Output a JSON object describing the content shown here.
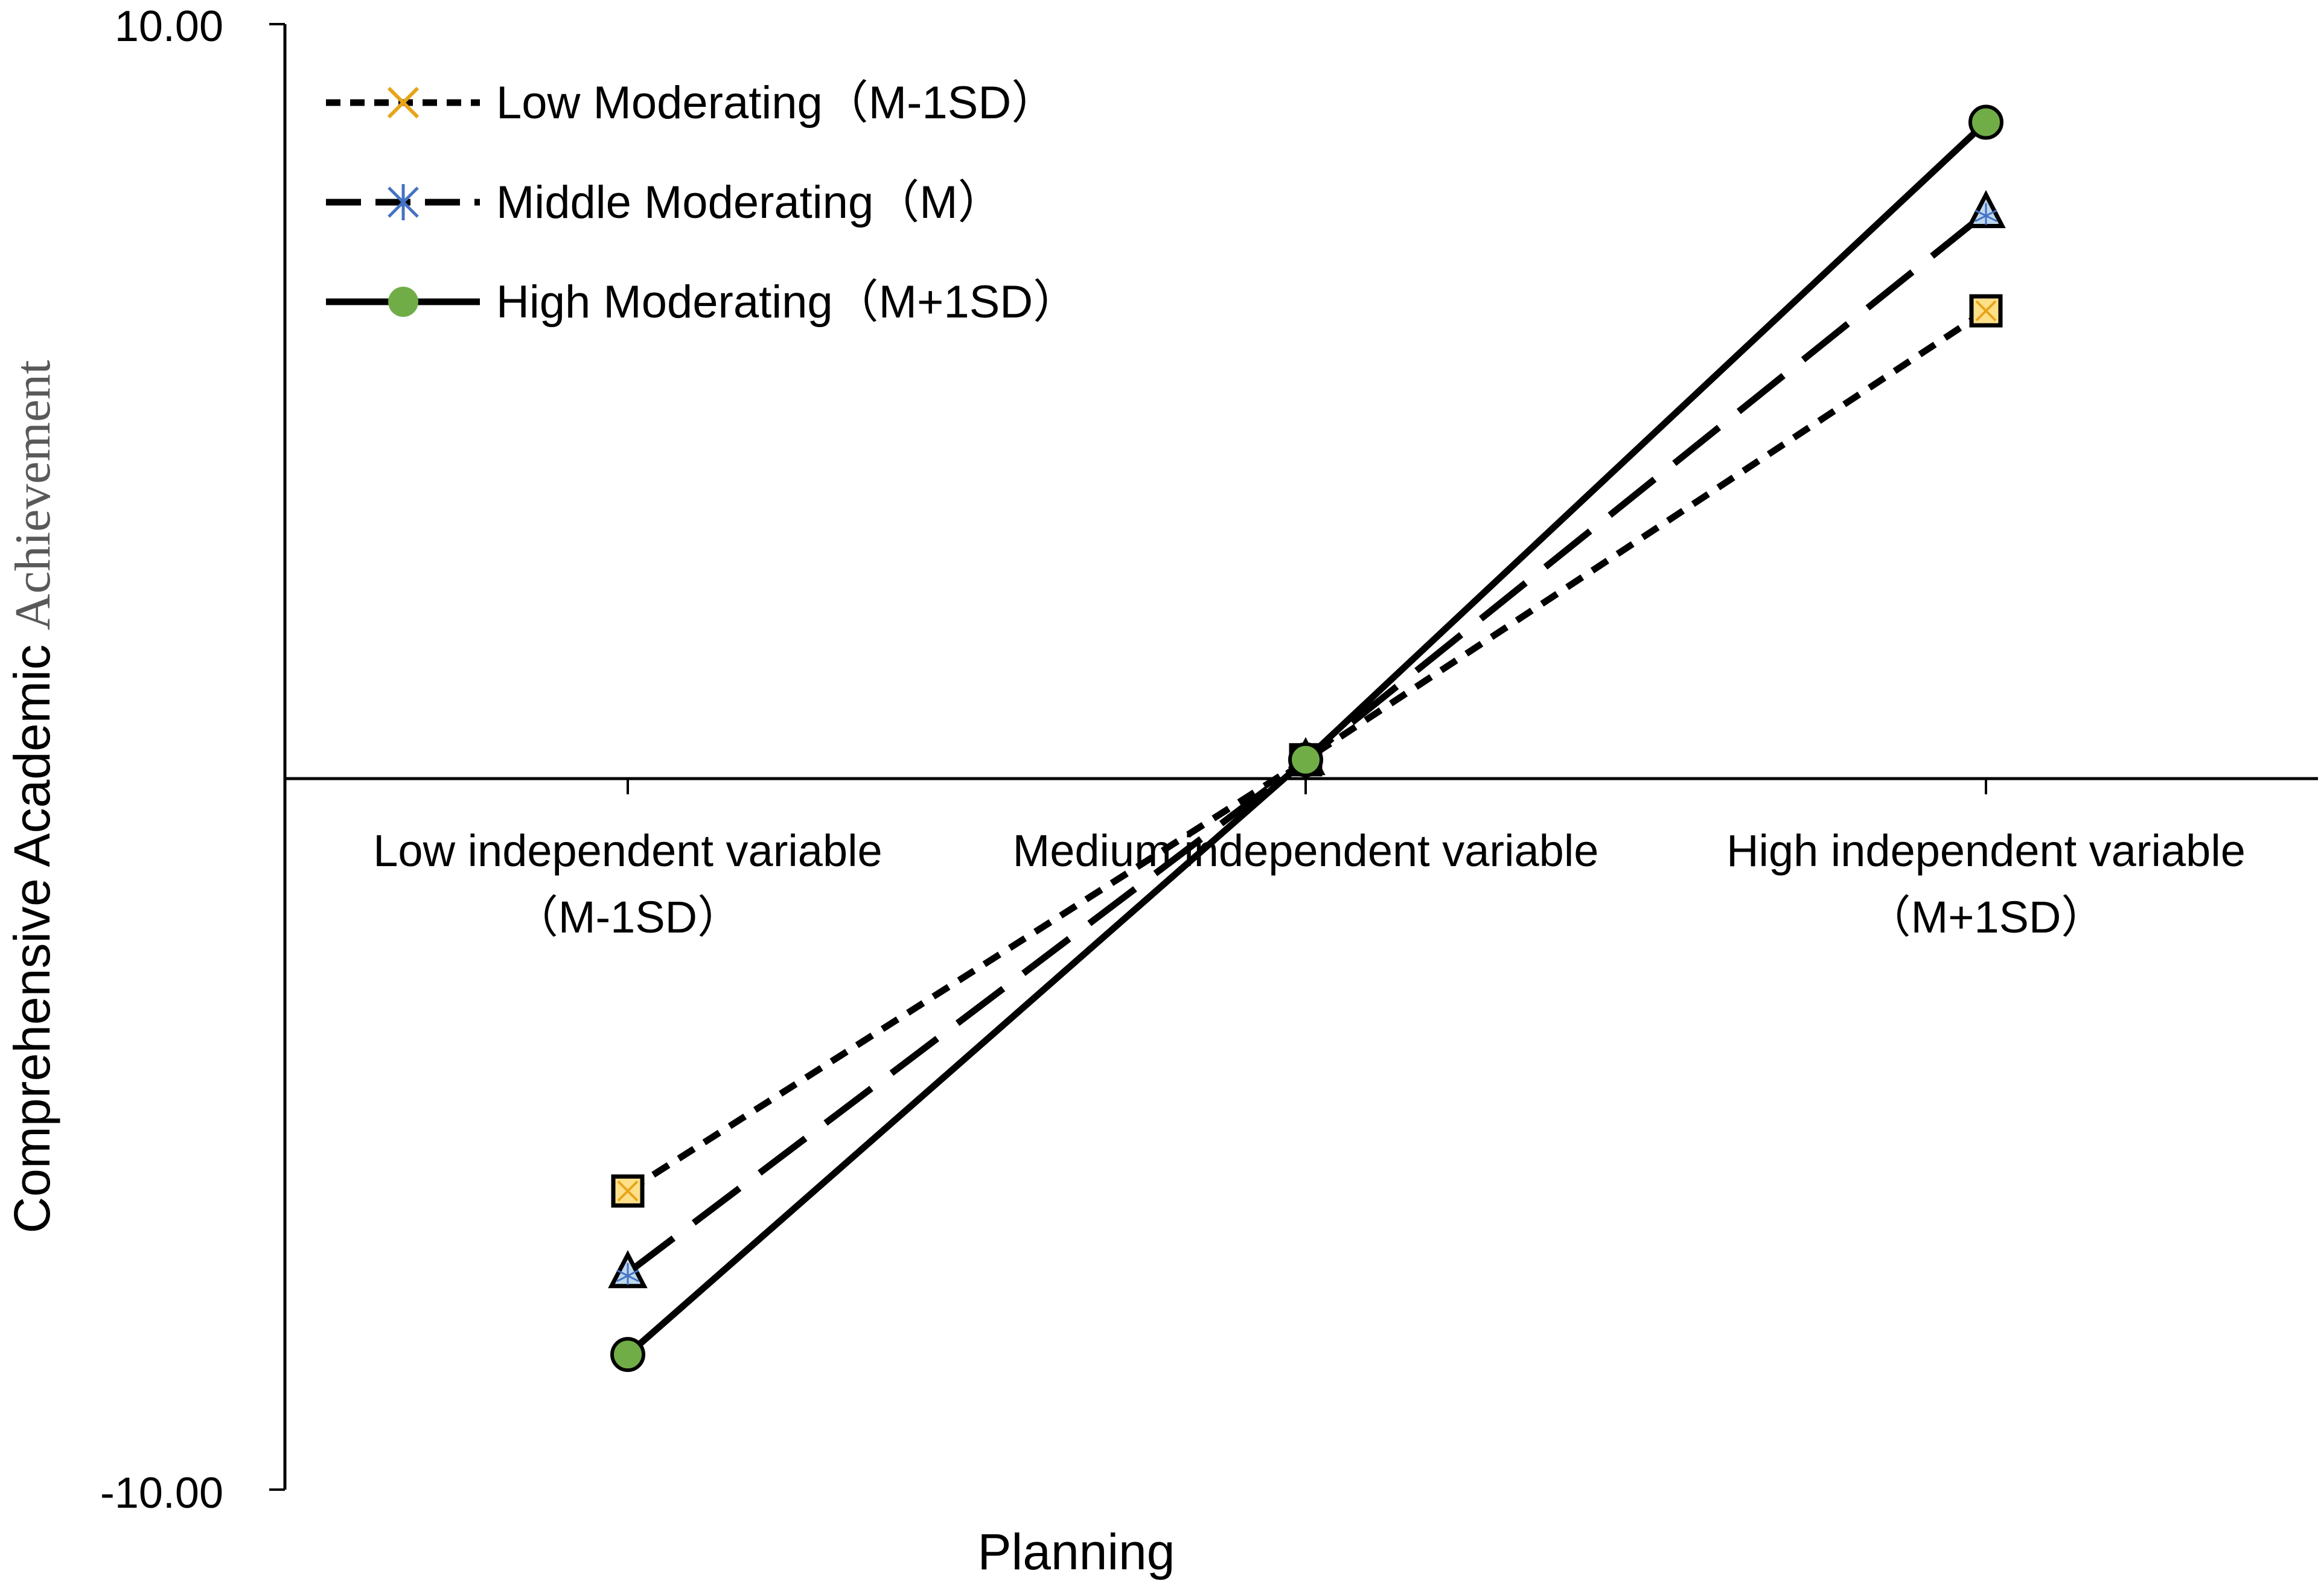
{
  "chart_data": {
    "type": "line",
    "ylabel_main": "Comprehensive Academic ",
    "ylabel_tail": "Achievement",
    "xlabel": "Planning",
    "ylim": [
      -10,
      10
    ],
    "y_ticks": [
      "10.00",
      "-10.00"
    ],
    "categories": [
      {
        "line1": "Low independent variable",
        "line2": "（M-1SD）"
      },
      {
        "line1": "Medium independent variable",
        "line2": ""
      },
      {
        "line1": "High independent variable",
        "line2": "（M+1SD）"
      }
    ],
    "series": [
      {
        "name": "Low Moderating（M-1SD）",
        "values": [
          -5.8,
          0.25,
          6.2
        ],
        "line_style": "short-dash",
        "legend_marker": "x",
        "legend_marker_color": "#E8A419",
        "point_marker": "square-x",
        "point_marker_fill": "#FFE08A"
      },
      {
        "name": "Middle Moderating（M）",
        "values": [
          -6.95,
          0.25,
          7.5
        ],
        "line_style": "long-dash",
        "legend_marker": "asterisk",
        "legend_marker_color": "#4472C4",
        "point_marker": "triangle",
        "point_marker_fill": "#BDD7EE"
      },
      {
        "name": "High Moderating（M+1SD）",
        "values": [
          -8.1,
          0.25,
          8.7
        ],
        "line_style": "solid",
        "legend_marker": "circle",
        "legend_marker_color": "#70AD47",
        "point_marker": "circle",
        "point_marker_fill": "#70AD47"
      }
    ],
    "grid": false,
    "legend_position": "top-left"
  }
}
